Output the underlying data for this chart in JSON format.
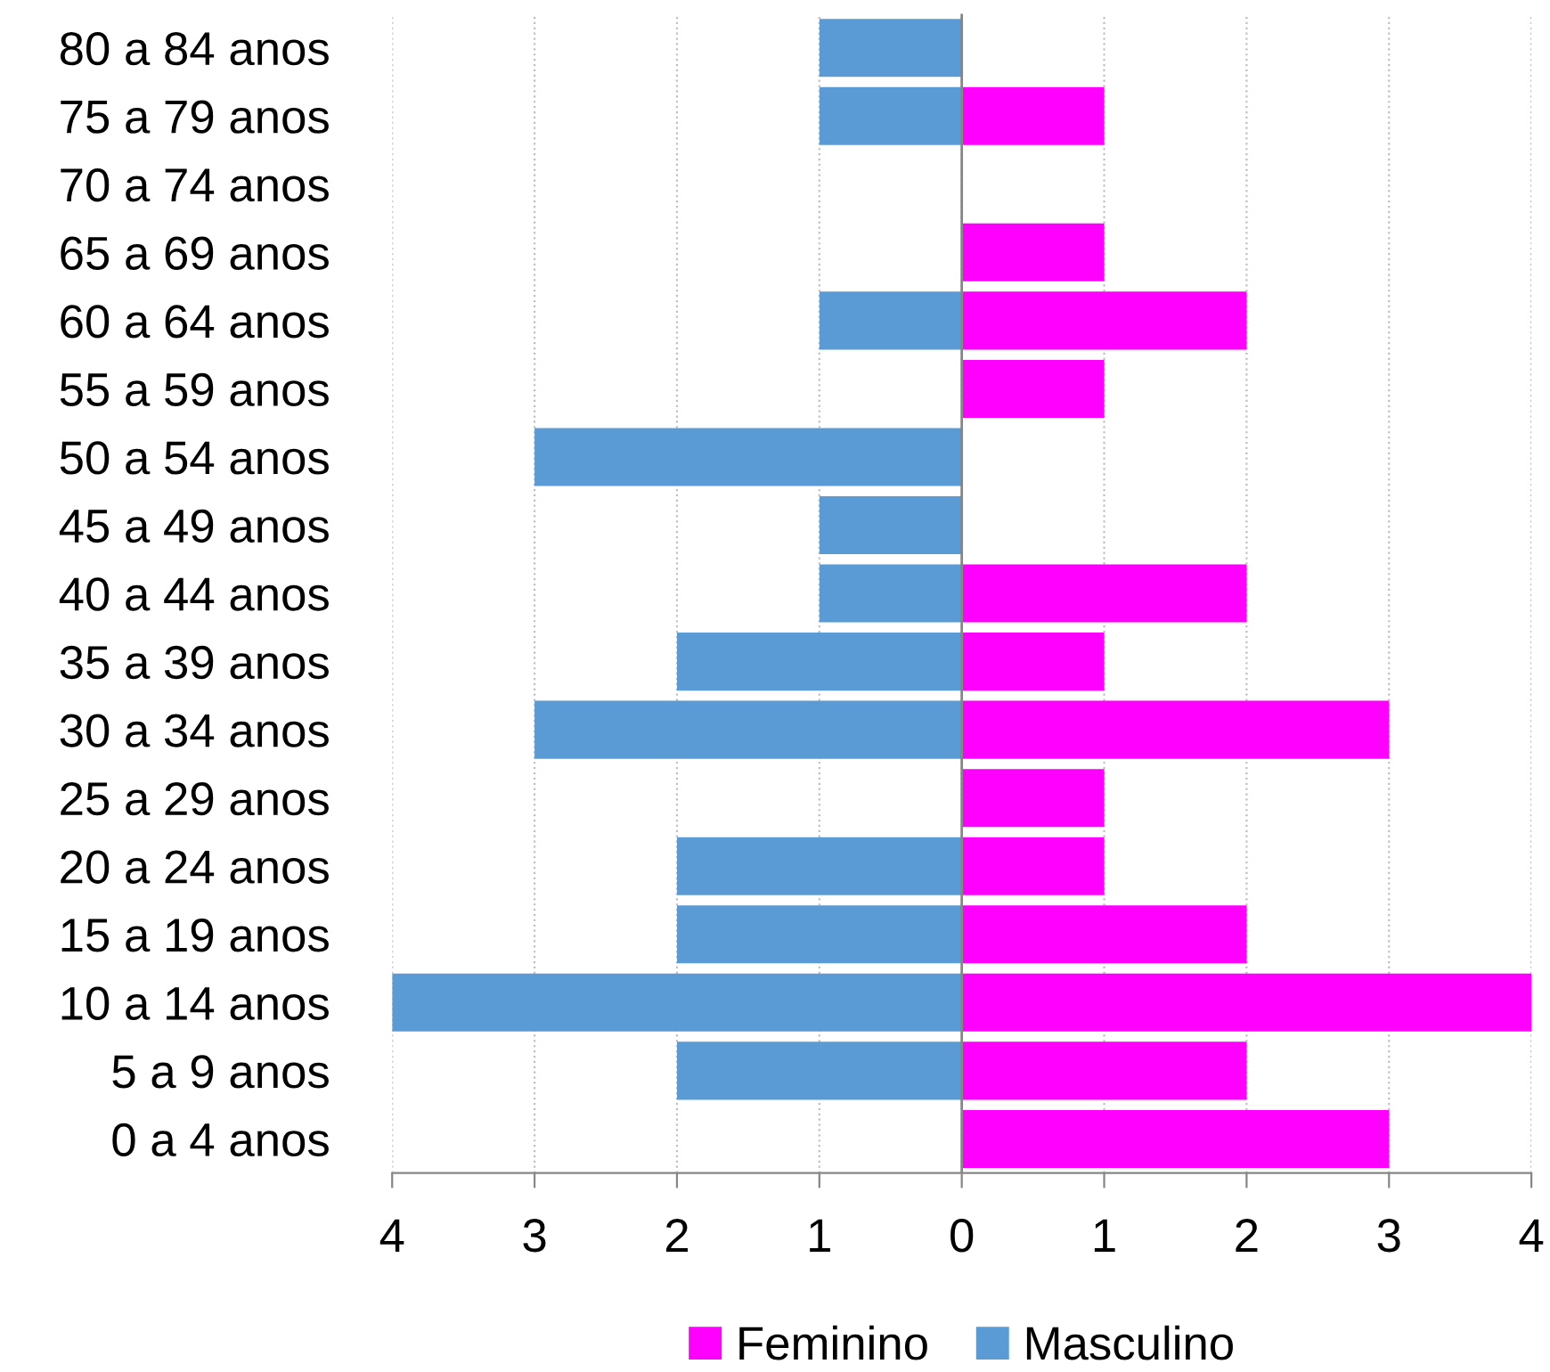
{
  "chart_data": {
    "type": "bar",
    "orientation": "horizontal",
    "stacked": true,
    "categories": [
      "80 a 84 anos",
      "75 a 79 anos",
      "70 a 74 anos",
      "65 a 69 anos",
      "60 a 64 anos",
      "55 a 59 anos",
      "50 a 54 anos",
      "45 a 49 anos",
      "40 a 44 anos",
      "35 a 39 anos",
      "30 a 34 anos",
      "25 a 29 anos",
      "20 a 24 anos",
      "15 a 19 anos",
      "10 a 14 anos",
      "5 a 9 anos",
      "0 a 4 anos"
    ],
    "series": [
      {
        "name": "Feminino",
        "color": "#ff00ff",
        "values": [
          0,
          1,
          0,
          1,
          2,
          1,
          0,
          0,
          2,
          1,
          3,
          1,
          1,
          2,
          4,
          2,
          3
        ]
      },
      {
        "name": "Masculino",
        "color": "#5b9bd5",
        "values": [
          -1,
          -1,
          0,
          0,
          -1,
          0,
          -3,
          -1,
          -1,
          -2,
          -3,
          0,
          -2,
          -2,
          -4,
          -2,
          0
        ]
      }
    ],
    "xlim": [
      -4,
      4
    ],
    "xticks": [
      {
        "value": -4,
        "label": "4"
      },
      {
        "value": -3,
        "label": "3"
      },
      {
        "value": -2,
        "label": "2"
      },
      {
        "value": -1,
        "label": "1"
      },
      0,
      1,
      2,
      3,
      4
    ],
    "ref_lines": [
      {
        "axis": "x",
        "value": 0,
        "color": "#868686"
      }
    ],
    "grid": "x",
    "legend": "bottom"
  }
}
